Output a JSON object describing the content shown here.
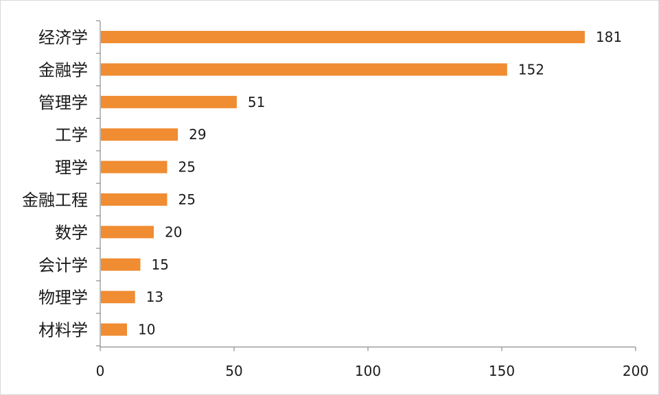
{
  "chart_data": {
    "type": "bar",
    "orientation": "horizontal",
    "categories": [
      "经济学",
      "金融学",
      "管理学",
      "工学",
      "理学",
      "金融工程",
      "数学",
      "会计学",
      "物理学",
      "材料学"
    ],
    "values": [
      181,
      152,
      51,
      29,
      25,
      25,
      20,
      15,
      13,
      10
    ],
    "data_labels": [
      "181",
      "152",
      "51",
      "29",
      "25",
      "25",
      "20",
      "15",
      "13",
      "10"
    ],
    "x_ticks": [
      "0",
      "50",
      "100",
      "150",
      "200"
    ],
    "xlim": [
      0,
      200
    ],
    "title": "",
    "xlabel": "",
    "ylabel": "",
    "grid": false,
    "legend": "none",
    "bar_color": "#F08C32"
  }
}
